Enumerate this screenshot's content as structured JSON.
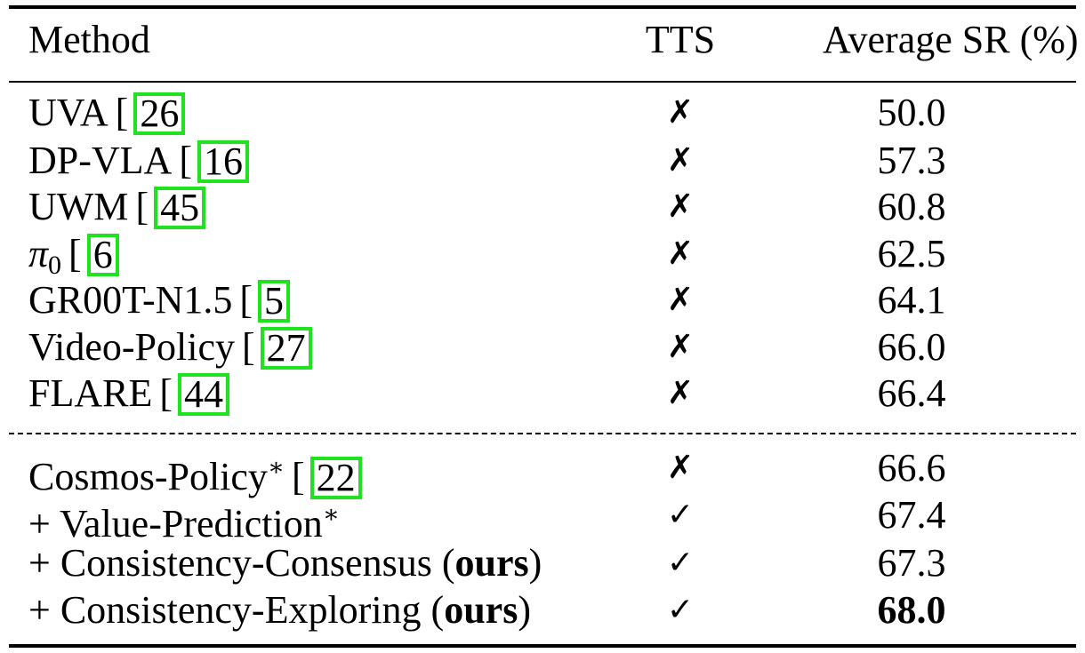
{
  "table": {
    "headers": {
      "method": "Method",
      "tts": "TTS",
      "sr": "Average SR (%)"
    },
    "group1": [
      {
        "method": "UVA",
        "ref": "26",
        "tts": "✗",
        "sr": "50.0"
      },
      {
        "method": "DP-VLA",
        "ref": "16",
        "tts": "✗",
        "sr": "57.3"
      },
      {
        "method": "UWM",
        "ref": "45",
        "tts": "✗",
        "sr": "60.8"
      },
      {
        "method_symbol": "π",
        "method_sub": "0",
        "ref": "6",
        "tts": "✗",
        "sr": "62.5"
      },
      {
        "method": "GR00T-N1.5",
        "ref": "5",
        "tts": "✗",
        "sr": "64.1"
      },
      {
        "method": "Video-Policy",
        "ref": "27",
        "tts": "✗",
        "sr": "66.0"
      },
      {
        "method": "FLARE",
        "ref": "44",
        "tts": "✗",
        "sr": "66.4"
      }
    ],
    "group2": [
      {
        "method": "Cosmos-Policy",
        "sup": "∗",
        "ref": "22",
        "tts": "✗",
        "sr": "66.6"
      },
      {
        "method": "+ Value-Prediction",
        "sup": "∗",
        "tts": "✓",
        "sr": "67.4"
      },
      {
        "method": "+ Consistency-Consensus (",
        "bold": "ours",
        "suffix": ")",
        "tts": "✓",
        "sr": "67.3"
      },
      {
        "method": "+ Consistency-Exploring (",
        "bold": "ours",
        "suffix": ")",
        "tts": "✓",
        "sr": "68.0",
        "sr_bold": true
      }
    ]
  },
  "colors": {
    "citation_box": "#1ee31e",
    "rule": "#000000"
  }
}
